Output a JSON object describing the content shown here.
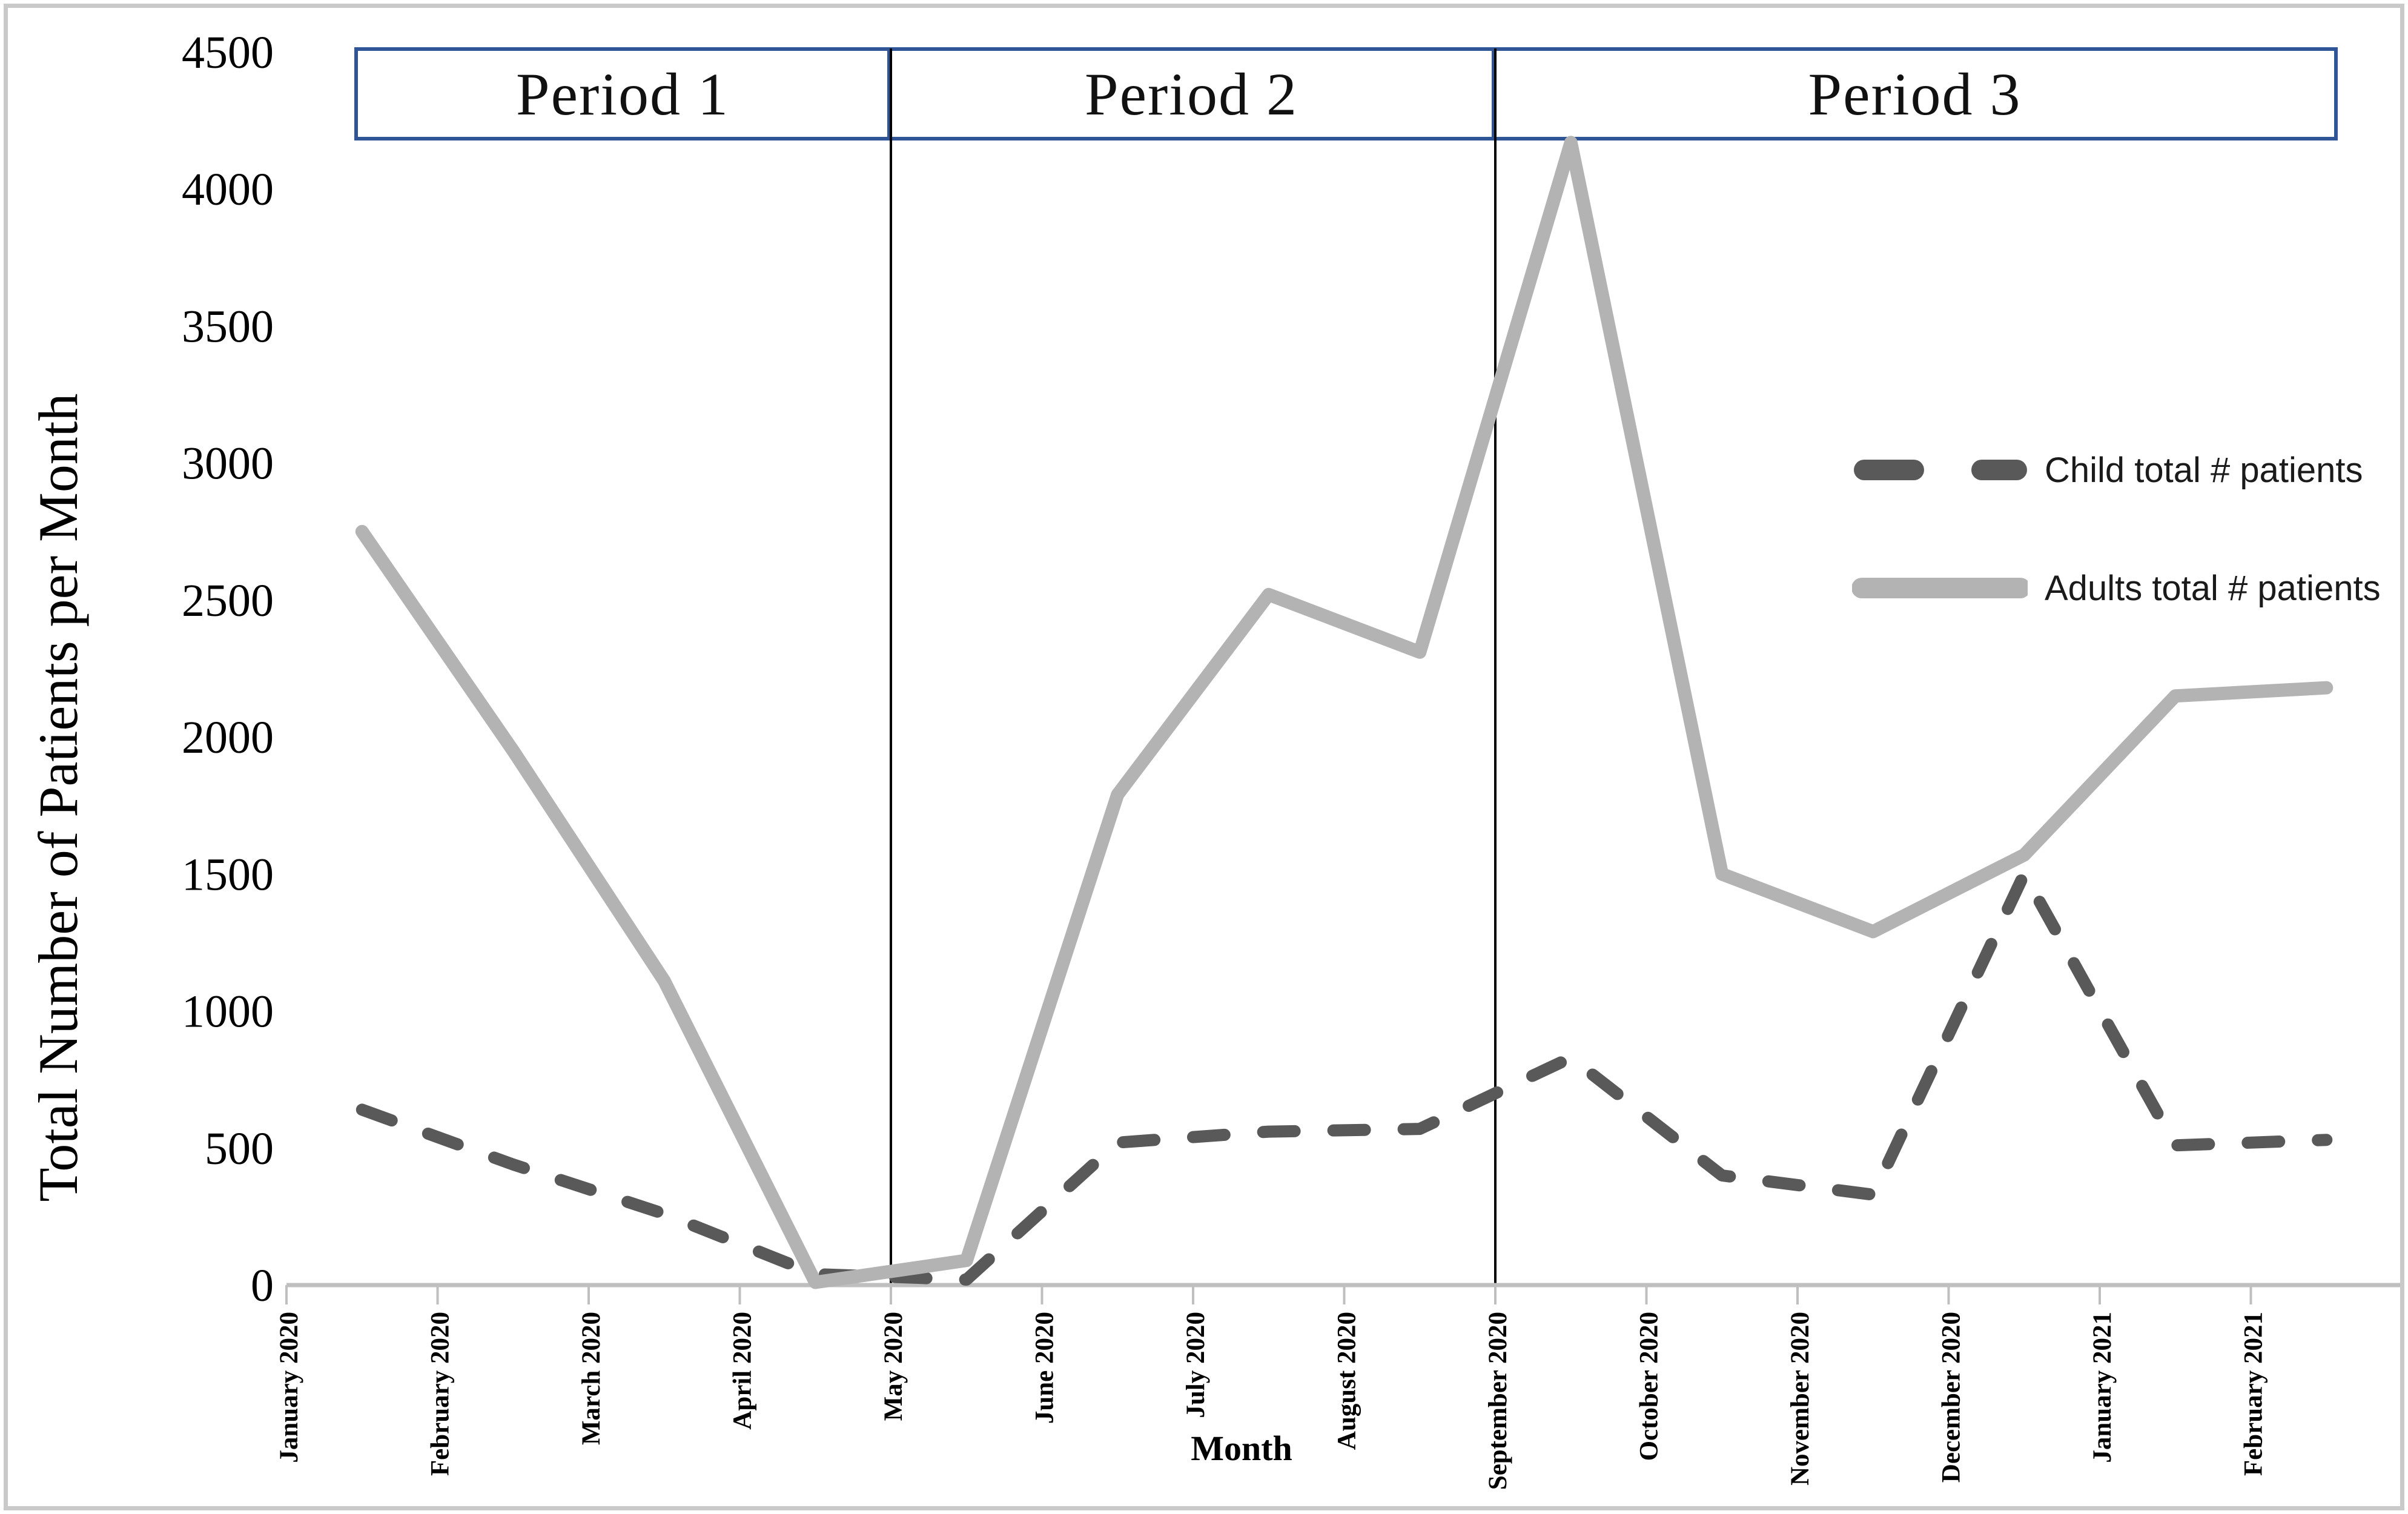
{
  "chart_data": {
    "type": "line",
    "title": "",
    "xlabel": "Month",
    "ylabel": "Total Number of Patients per Month",
    "categories": [
      "January 2020",
      "February 2020",
      "March 2020",
      "April 2020",
      "May 2020",
      "June 2020",
      "July 2020",
      "August 2020",
      "September 2020",
      "October 2020",
      "November 2020",
      "December 2020",
      "January 2021",
      "February 2021"
    ],
    "series": [
      {
        "name": "Child total # patients",
        "line_style": "dashed",
        "color": "#595959",
        "values": [
          640,
          440,
          260,
          40,
          20,
          520,
          560,
          570,
          830,
          400,
          330,
          1500,
          510,
          530
        ]
      },
      {
        "name": "Adults total # patients",
        "line_style": "solid",
        "color": "#b3b3b3",
        "values": [
          2750,
          1950,
          1110,
          10,
          90,
          1790,
          2520,
          2310,
          4170,
          1500,
          1290,
          1570,
          2150,
          2180
        ]
      }
    ],
    "ylim": [
      0,
      4500
    ],
    "y_ticks": [
      0,
      500,
      1000,
      1500,
      2000,
      2500,
      3000,
      3500,
      4000,
      4500
    ],
    "grid": "off",
    "legend_position": "right-middle",
    "annotations": {
      "periods": [
        {
          "label": "Period 1"
        },
        {
          "label": "Period 2"
        },
        {
          "label": "Period 3"
        }
      ],
      "period_box_border_color": "#2f5597",
      "divider_color": "#000000",
      "dividers_at_categories": [
        "May 2020",
        "September 2020"
      ]
    },
    "axis_color": "#bfbfbf"
  }
}
